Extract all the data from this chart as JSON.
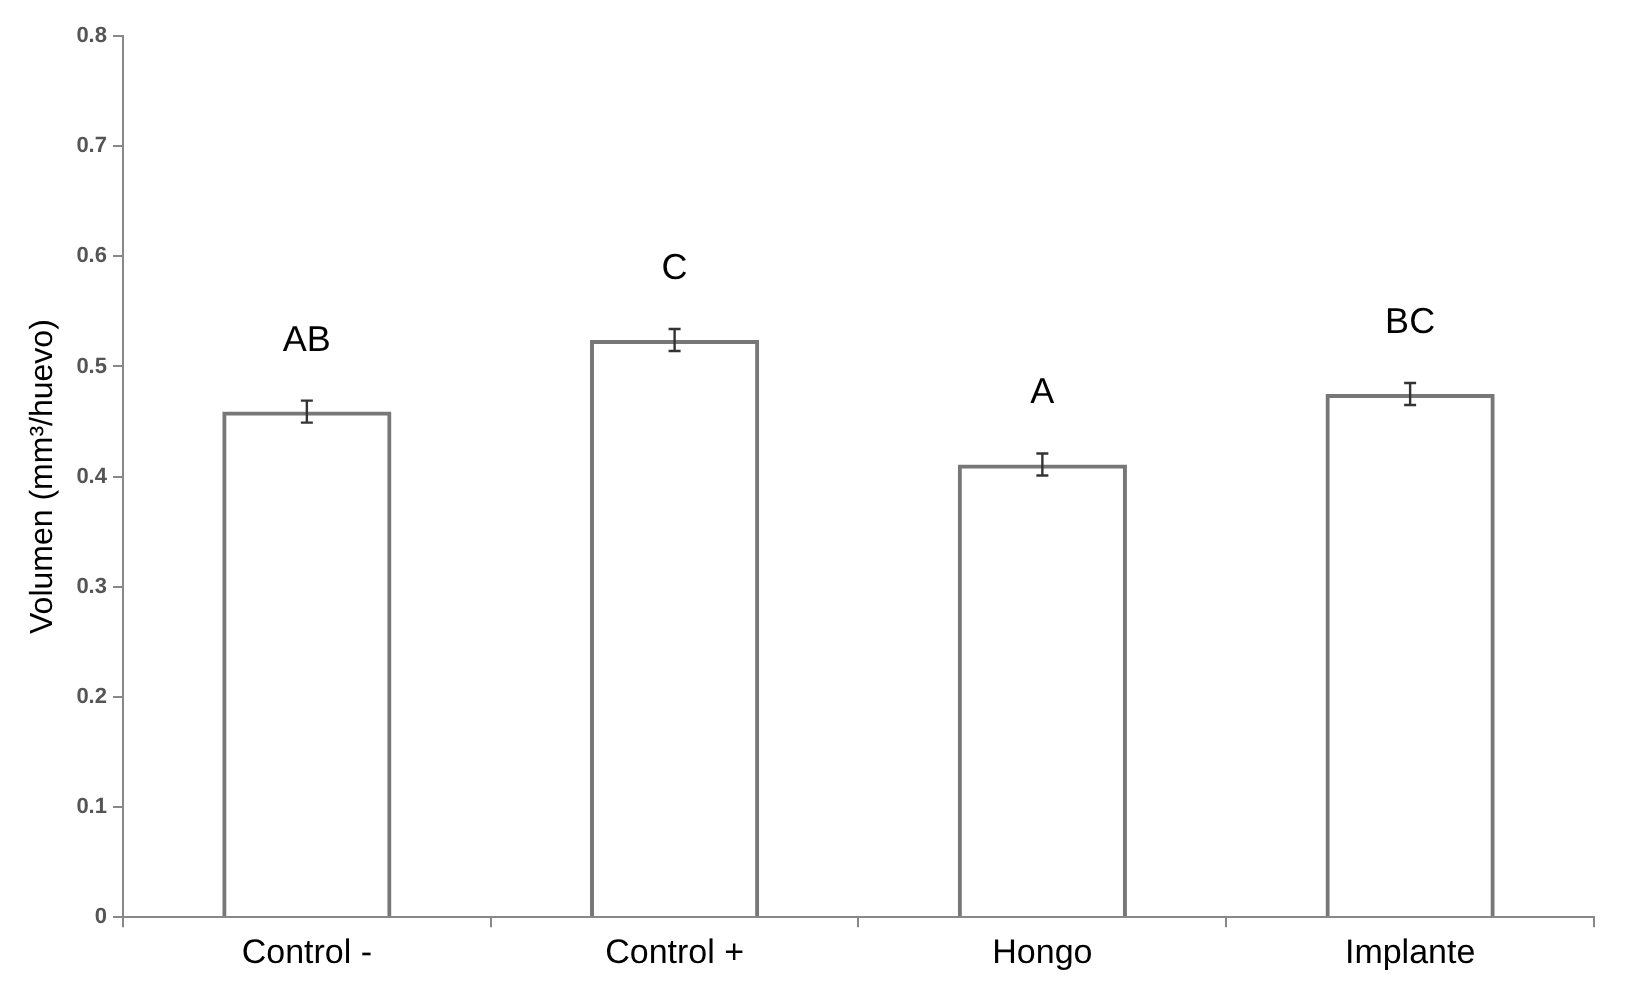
{
  "chart_data": {
    "type": "bar",
    "ylabel": "Volumen (mm³/huevo)",
    "categories": [
      "Control -",
      "Control +",
      "Hongo",
      "Implante"
    ],
    "values": [
      0.459,
      0.524,
      0.411,
      0.475
    ],
    "errors": [
      0.01,
      0.01,
      0.01,
      0.01
    ],
    "color": "#777777",
    "ylim": [
      0,
      0.8
    ],
    "yticks": [
      0,
      0.1,
      0.2,
      0.3,
      0.4,
      0.5,
      0.6,
      0.7,
      0.8
    ],
    "grid": false,
    "legend": false,
    "annotations": [
      "AB",
      "C",
      "A",
      "BC"
    ]
  }
}
